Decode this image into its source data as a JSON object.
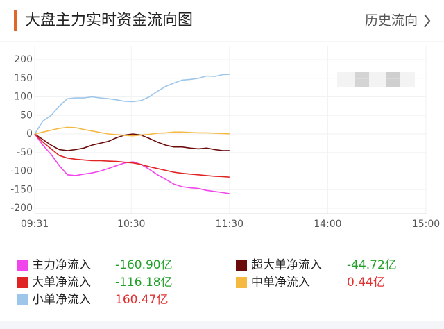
{
  "header": {
    "title": "大盘主力实时资金流向图",
    "link": "历史流向"
  },
  "chart_data": {
    "type": "line",
    "grid": true,
    "xlim": [
      0,
      239
    ],
    "ylim": [
      -200,
      200
    ],
    "xticks": [
      {
        "value": 0,
        "label": "09:31"
      },
      {
        "value": 59,
        "label": "10:30"
      },
      {
        "value": 119,
        "label": "11:30"
      },
      {
        "value": 179,
        "label": "14:00"
      },
      {
        "value": 239,
        "label": "15:00"
      }
    ],
    "yticks": [
      200,
      150,
      100,
      50,
      0,
      -50,
      -100,
      -150,
      -200
    ],
    "x": [
      0,
      5,
      10,
      15,
      20,
      25,
      30,
      35,
      40,
      45,
      50,
      55,
      60,
      65,
      70,
      75,
      80,
      85,
      90,
      95,
      100,
      105,
      110,
      115,
      119
    ],
    "series": [
      {
        "name": "主力净流入",
        "color": "#f046ec",
        "last_label": "-160.90亿",
        "values": [
          0,
          -30,
          -55,
          -85,
          -110,
          -112,
          -108,
          -105,
          -100,
          -93,
          -85,
          -78,
          -75,
          -82,
          -95,
          -110,
          -122,
          -135,
          -142,
          -145,
          -147,
          -152,
          -155,
          -158,
          -160.9
        ]
      },
      {
        "name": "超大单净流入",
        "color": "#6b0a0a",
        "last_label": "-44.72亿",
        "values": [
          0,
          -15,
          -30,
          -42,
          -45,
          -42,
          -38,
          -30,
          -25,
          -20,
          -10,
          -3,
          0,
          -3,
          -12,
          -22,
          -30,
          -35,
          -35,
          -38,
          -40,
          -38,
          -42,
          -45,
          -44.72
        ]
      },
      {
        "name": "大单净流入",
        "color": "#e02424",
        "last_label": "-116.18亿",
        "values": [
          0,
          -22,
          -40,
          -58,
          -65,
          -68,
          -70,
          -72,
          -72,
          -73,
          -74,
          -76,
          -78,
          -82,
          -88,
          -93,
          -98,
          -103,
          -106,
          -108,
          -110,
          -112,
          -114,
          -115,
          -116.18
        ]
      },
      {
        "name": "中单净流入",
        "color": "#f5b942",
        "last_label": "0.44亿",
        "values": [
          0,
          5,
          10,
          15,
          18,
          17,
          12,
          8,
          4,
          0,
          -2,
          -4,
          -5,
          -3,
          -1,
          2,
          3,
          5,
          5,
          4,
          3,
          3,
          2,
          1,
          0.44
        ]
      },
      {
        "name": "小单净流入",
        "color": "#9ec6ea",
        "last_label": "160.47亿",
        "values": [
          0,
          35,
          50,
          75,
          95,
          97,
          97,
          100,
          97,
          95,
          92,
          88,
          87,
          90,
          100,
          115,
          128,
          137,
          145,
          147,
          150,
          156,
          155,
          160,
          160.47
        ]
      }
    ]
  }
}
